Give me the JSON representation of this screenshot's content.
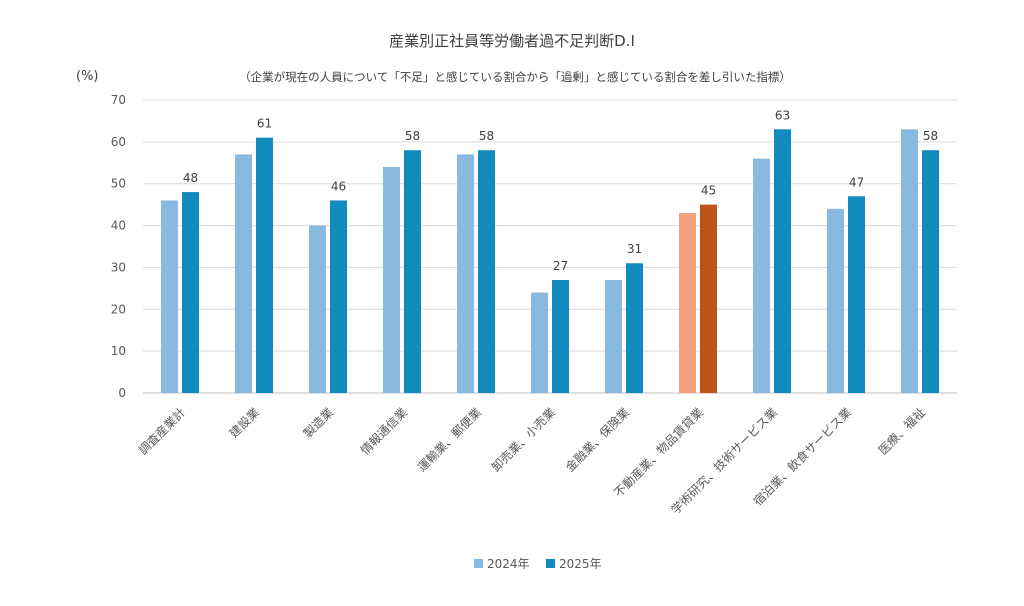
{
  "chart_data": {
    "type": "bar",
    "title": "産業別正社員等労働者過不足判断D.I",
    "subtitle": "（企業が現在の人員について「不足」と感じている割合から「過剰」と感じている割合を差し引いた指標）",
    "ylabel": "(%)",
    "ylim": [
      0,
      70
    ],
    "yticks": [
      0,
      10,
      20,
      30,
      40,
      50,
      60,
      70
    ],
    "grid": true,
    "legend_position": "bottom",
    "categories": [
      "調査産業計",
      "建設業",
      "製造業",
      "情報通信業",
      "運輸業、郵便業",
      "卸売業、小売業",
      "金融業、保険業",
      "不動産業、物品賃貸業",
      "学術研究、技術サービス業",
      "宿泊業、飲食サービス業",
      "医療、福祉"
    ],
    "series": [
      {
        "name": "2024年",
        "values": [
          46,
          57,
          40,
          54,
          57,
          24,
          27,
          43,
          56,
          44,
          63
        ]
      },
      {
        "name": "2025年",
        "values": [
          48,
          61,
          46,
          58,
          58,
          27,
          31,
          45,
          63,
          47,
          58
        ]
      }
    ],
    "data_labels": [
      "48",
      "61",
      "46",
      "58",
      "58",
      "27",
      "31",
      "45",
      "63",
      "47",
      "58"
    ],
    "colors": {
      "series_2024": "#8ab9e0",
      "series_2025": "#118bbd",
      "highlight_2024": "#f1a37f",
      "highlight_2025": "#c0531a",
      "grid": "#d9d9d9",
      "axis": "#bfbfbf"
    },
    "highlight_category": "不動産業、物品賃貸業"
  }
}
